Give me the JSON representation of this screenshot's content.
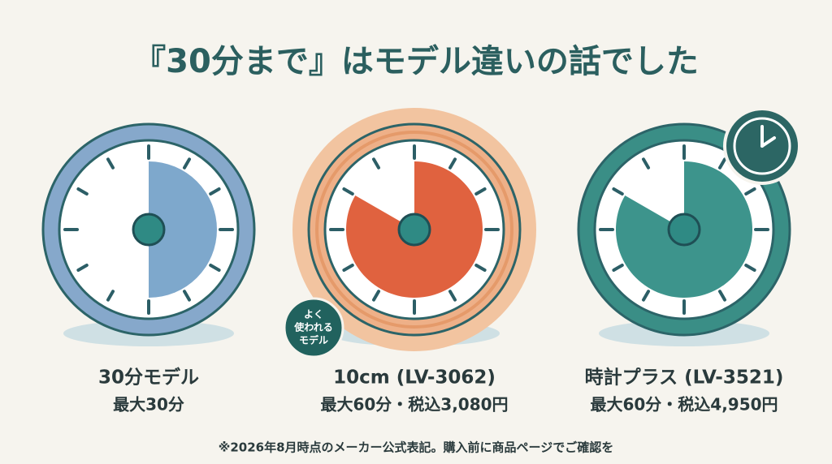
{
  "title": "『30分まで』はモデル違いの話でした",
  "items": [
    {
      "name": "30分モデル",
      "detail": "最大30分"
    },
    {
      "name": "10cm (LV-3062)",
      "detail": "最大60分・税込3,080円"
    },
    {
      "name": "時計プラス (LV-3521)",
      "detail": "最大60分・税込4,950円"
    }
  ],
  "badge": [
    "よく",
    "使われる",
    "モデル"
  ],
  "footnote": "※2026年8月時点のメーカー公式表記。購入前に商品ページでご確認を"
}
